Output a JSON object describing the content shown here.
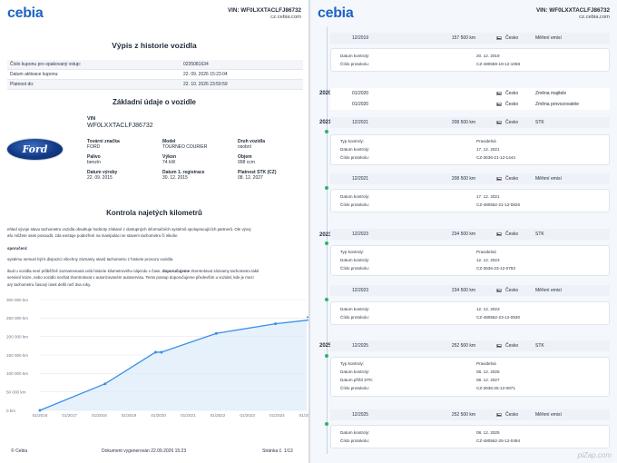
{
  "brand": "cebia",
  "header": {
    "vin": "VIN: WF0LXXTACLFJ86732",
    "url": "cz.cebia.com"
  },
  "left": {
    "title": "Výpis z historie vozidla",
    "coupon": [
      {
        "label": "Číslo kuponu pro opakovaný vstup:",
        "value": "0235081634"
      },
      {
        "label": "Datum aktivace kuponu:",
        "value": "22. 09. 2026 15:23:04"
      },
      {
        "label": "Platnost do:",
        "value": "22. 10. 2026 23:59:59"
      }
    ],
    "basic_title": "Základní údaje o vozidle",
    "vin_label": "VIN",
    "vin_value": "WF0LXXTACLFJ86732",
    "logo_text": "Ford",
    "specs": [
      {
        "k": "Tovární značka",
        "v": "FORD"
      },
      {
        "k": "Model",
        "v": "TOURNEO COURIER"
      },
      {
        "k": "Druh vozidla",
        "v": "osobní"
      },
      {
        "k": "Palivo",
        "v": "benzín"
      },
      {
        "k": "Výkon",
        "v": "74 kW"
      },
      {
        "k": "Objem",
        "v": "998 ccm"
      },
      {
        "k": "Datum výroby",
        "v": "22. 09. 2015"
      },
      {
        "k": "Datum 1. registrace",
        "v": "30. 12. 2015"
      },
      {
        "k": "Platnost STK (CZ)",
        "v": "08. 12. 2027"
      }
    ],
    "km_title": "Kontrola najetých kilometrů",
    "intro1": "ehled vývoje stavu tachometru vozidla obsahuje hodnoty získané z dostupných informačních systémů spolupracujících partnerů. Ole vývoj",
    "intro2": "afu můžete sami posoudit, zda existuje podezření na manipulaci se stavem tachometru či nikoliv.",
    "intro3": "sporučení:",
    "intro4": "systému nemusí být k dispozici všechny záznamy stavů tachometru z historie provozu vozidla.",
    "intro5a": "ikud u vozidla není průběžně zaznamenaná celá historie kilometrového nájezdu v čase, ",
    "intro5b": "doporučujeme",
    "intro5c": " zkontrolovat záznamy tachometru také",
    "intro6": "servisní knize, nebo vozidlo nechat zkontrolovat v autorizovaném autoservisu. Tento postup doporučujeme především u vozidel, kde je mezi",
    "intro7": "ary tachometru časový úsek delší než dva roky.",
    "footer_left": "© Cebia",
    "footer_mid": "Dokument vygenerován 22.09.2026 15:23",
    "footer_right": "Stránka č.  1/13"
  },
  "chart_data": {
    "type": "area",
    "title": "",
    "xlabel": "",
    "ylabel": "",
    "x_ticks": [
      "01/2016",
      "01/2017",
      "01/2018",
      "01/2019",
      "01/2020",
      "01/2021",
      "01/2022",
      "01/2023",
      "01/2024",
      "01/2025"
    ],
    "y_ticks": [
      "300 000 km",
      "250 000 km",
      "200 000 km",
      "150 000 km",
      "100 000 km",
      "50 000 km",
      "0 km"
    ],
    "ylim": [
      0,
      300000
    ],
    "x_unit": "years since 01/2016",
    "points": [
      {
        "x": 0.0,
        "y": 0
      },
      {
        "x": 2.2,
        "y": 72000
      },
      {
        "x": 3.9,
        "y": 157500
      },
      {
        "x": 4.1,
        "y": 157500
      },
      {
        "x": 5.95,
        "y": 208500
      },
      {
        "x": 7.95,
        "y": 234500
      },
      {
        "x": 9.95,
        "y": 252500
      }
    ],
    "grid": true,
    "color": "#3a8ee6"
  },
  "right": {
    "watermark": "piZap.com",
    "years": [
      "2020",
      "2021",
      "2023",
      "2025"
    ],
    "events": [
      {
        "date": "12/2019",
        "km": "157 500 km",
        "country": "Česko",
        "type": "Měření emisí"
      },
      {
        "date": "01/2020",
        "km": "",
        "country": "Česko",
        "type": "Změna majitele"
      },
      {
        "date": "01/2020",
        "km": "",
        "country": "Česko",
        "type": "Změna provozovatele"
      },
      {
        "date": "12/2021",
        "km": "208 500 km",
        "country": "Česko",
        "type": "STK"
      },
      {
        "date": "12/2021",
        "km": "208 500 km",
        "country": "Česko",
        "type": "Měření emisí"
      },
      {
        "date": "12/2023",
        "km": "234 500 km",
        "country": "Česko",
        "type": "STK"
      },
      {
        "date": "12/2023",
        "km": "234 500 km",
        "country": "Česko",
        "type": "Měření emisí"
      },
      {
        "date": "12/2025",
        "km": "252 500 km",
        "country": "Česko",
        "type": "STK"
      },
      {
        "date": "12/2025",
        "km": "252 500 km",
        "country": "Česko",
        "type": "Měření emisí"
      }
    ],
    "details": [
      [
        {
          "k": "Datum kontroly:",
          "v": "20. 12. 2019"
        },
        {
          "k": "Číslo protokolu:",
          "v": "CZ-480559-19-12-1058"
        }
      ],
      [
        {
          "k": "Typ kontroly:",
          "v": "Pravidelná"
        },
        {
          "k": "Datum kontroly:",
          "v": "17. 12. 2021"
        },
        {
          "k": "Číslo protokolu:",
          "v": "CZ-3636-21-12-1444"
        }
      ],
      [
        {
          "k": "Datum kontroly:",
          "v": "17. 12. 2021"
        },
        {
          "k": "Číslo protokolu:",
          "v": "CZ-480562-21-12-0826"
        }
      ],
      [
        {
          "k": "Typ kontroly:",
          "v": "Pravidelná"
        },
        {
          "k": "Datum kontroly:",
          "v": "12. 12. 2023"
        },
        {
          "k": "Číslo protokolu:",
          "v": "CZ-3636-23-12-0793"
        }
      ],
      [
        {
          "k": "Datum kontroly:",
          "v": "12. 12. 2023"
        },
        {
          "k": "Číslo protokolu:",
          "v": "CZ-480562-23-12-0530"
        }
      ],
      [
        {
          "k": "Typ kontroly:",
          "v": "Pravidelná"
        },
        {
          "k": "Datum kontroly:",
          "v": "08. 12. 2025"
        },
        {
          "k": "Datum příští STK:",
          "v": "08. 12. 2027"
        },
        {
          "k": "Číslo protokolu:",
          "v": "CZ-3636-25-12-0871"
        }
      ],
      [
        {
          "k": "Datum kontroly:",
          "v": "08. 12. 2025"
        },
        {
          "k": "Číslo protokolu:",
          "v": "CZ-480562-25-12-0494"
        }
      ]
    ]
  }
}
